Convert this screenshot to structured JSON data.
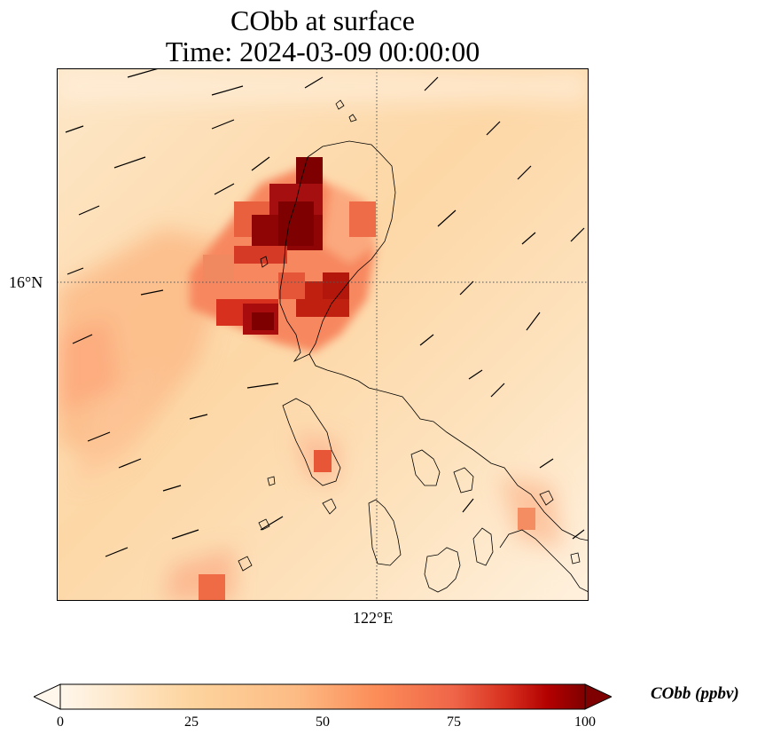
{
  "title": {
    "line1": "CObb at surface",
    "line2": "Time: 2024-03-09 00:00:00"
  },
  "map": {
    "gridlines": {
      "lat_label": "16°N",
      "lon_label": "122°E"
    },
    "colormap": "OrRd",
    "colors": {
      "low": "#fff7ec",
      "mid": "#fdbb84",
      "high": "#7f0000",
      "coastline": "#000000",
      "wind_arrow": "#000000"
    },
    "layers": [
      "CObb concentration field",
      "coastlines",
      "wind vectors"
    ]
  },
  "colorbar": {
    "label": "CObb (ppbv)",
    "min": 0,
    "max": 100,
    "ticks": [
      "0",
      "25",
      "50",
      "75",
      "100"
    ],
    "extend": "both"
  }
}
